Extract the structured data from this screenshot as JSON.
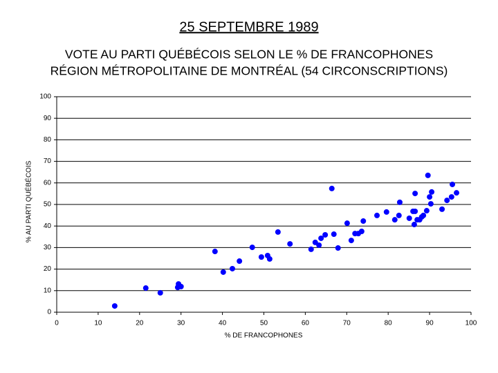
{
  "chart_data": {
    "type": "scatter",
    "title": "25 SEPTEMBRE 1989",
    "subtitle": [
      "VOTE AU PARTI QUÉBÉCOIS SELON LE % DE FRANCOPHONES",
      "RÉGION MÉTROPOLITAINE DE MONTRÉAL (54 CIRCONSCRIPTIONS)"
    ],
    "x_label": "% DE FRANCOPHONES",
    "y_label": "% AU PARTI QUÉBÉCOIS",
    "color": "#0000ff",
    "grid": true,
    "xlim": [
      0,
      100
    ],
    "xticks": [
      0,
      10,
      20,
      30,
      40,
      50,
      60,
      70,
      80,
      90,
      100
    ],
    "ylim": [
      0,
      100
    ],
    "yticks": [
      0,
      10,
      20,
      30,
      40,
      50,
      60,
      70,
      80,
      90,
      100
    ],
    "x": [
      14.0,
      21.5,
      25.0,
      29.2,
      29.4,
      30.0,
      38.2,
      40.2,
      42.4,
      44.1,
      47.2,
      49.4,
      50.9,
      51.4,
      53.4,
      56.3,
      61.4,
      62.4,
      63.3,
      63.8,
      64.8,
      66.4,
      66.9,
      67.9,
      70.1,
      71.1,
      72.0,
      72.8,
      73.6,
      74.0,
      77.3,
      79.6,
      81.6,
      82.6,
      82.8,
      85.1,
      86.0,
      86.5,
      86.3,
      86.5,
      87.0,
      88.1,
      88.5,
      89.3,
      89.6,
      90.0,
      90.3,
      90.5,
      93.0,
      94.2,
      95.3,
      95.5,
      96.5,
      87.6
    ],
    "y": [
      2.9,
      11.2,
      9.0,
      11.5,
      13.1,
      11.9,
      28.2,
      18.6,
      20.2,
      23.7,
      30.1,
      25.6,
      26.3,
      24.7,
      37.2,
      31.7,
      29.2,
      32.4,
      31.1,
      34.3,
      35.9,
      57.4,
      36.2,
      29.8,
      41.3,
      33.3,
      36.5,
      36.5,
      37.5,
      42.3,
      44.9,
      46.5,
      42.9,
      44.9,
      51.0,
      43.6,
      46.8,
      46.8,
      40.7,
      55.1,
      42.9,
      44.2,
      44.9,
      47.1,
      63.5,
      53.5,
      50.3,
      55.8,
      47.8,
      51.9,
      53.5,
      59.3,
      55.4,
      42.9
    ]
  }
}
